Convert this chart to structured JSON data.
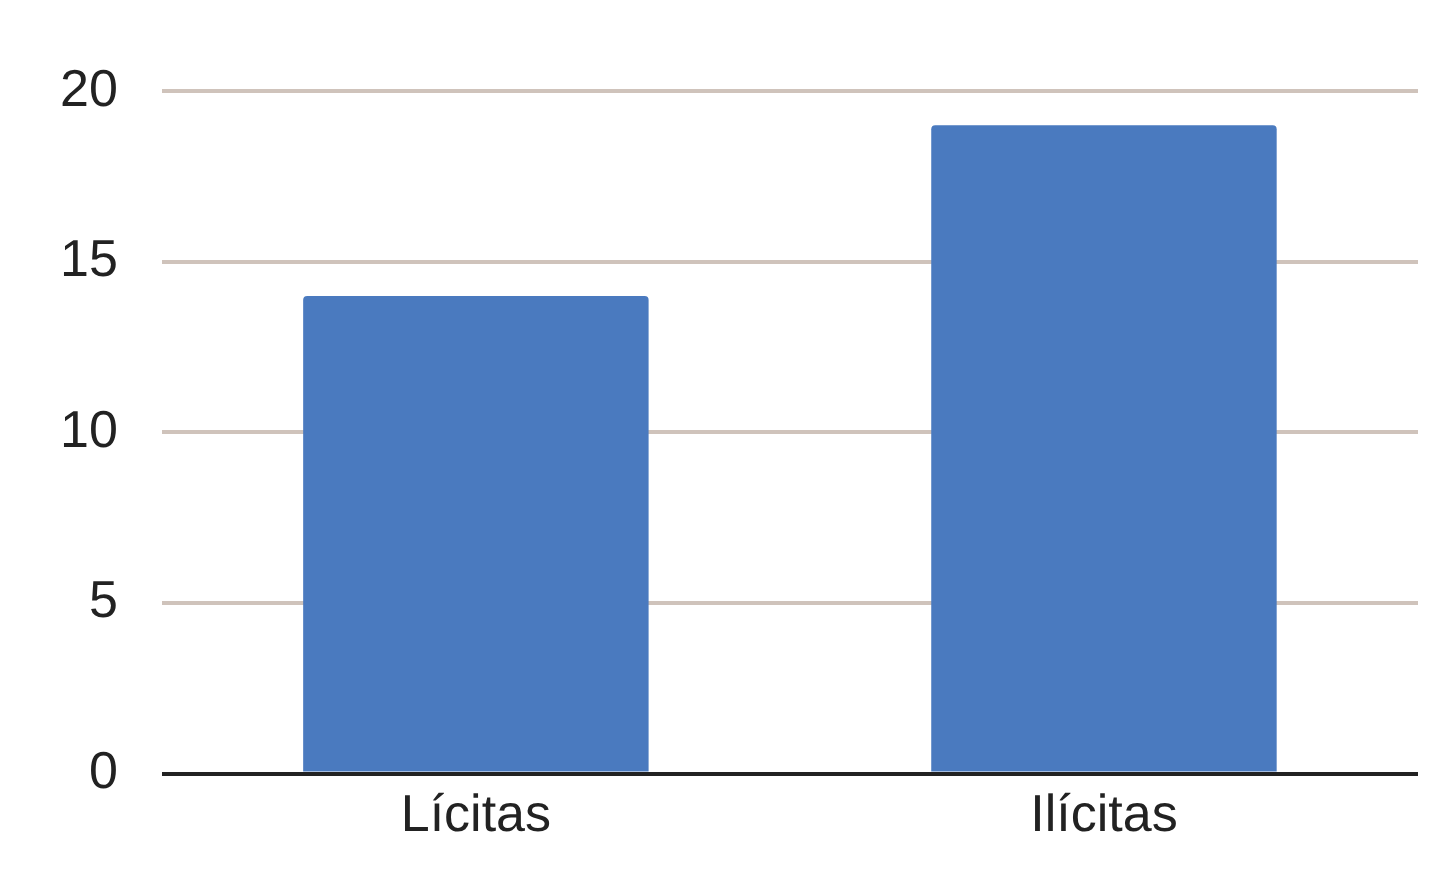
{
  "chart_data": {
    "type": "bar",
    "categories": [
      "Lícitas",
      "Ilícitas"
    ],
    "values": [
      14,
      19
    ],
    "color": "#4a7abf",
    "ylim": [
      0,
      20
    ],
    "yticks": [
      0,
      5,
      10,
      15,
      20
    ],
    "grid": "y"
  }
}
